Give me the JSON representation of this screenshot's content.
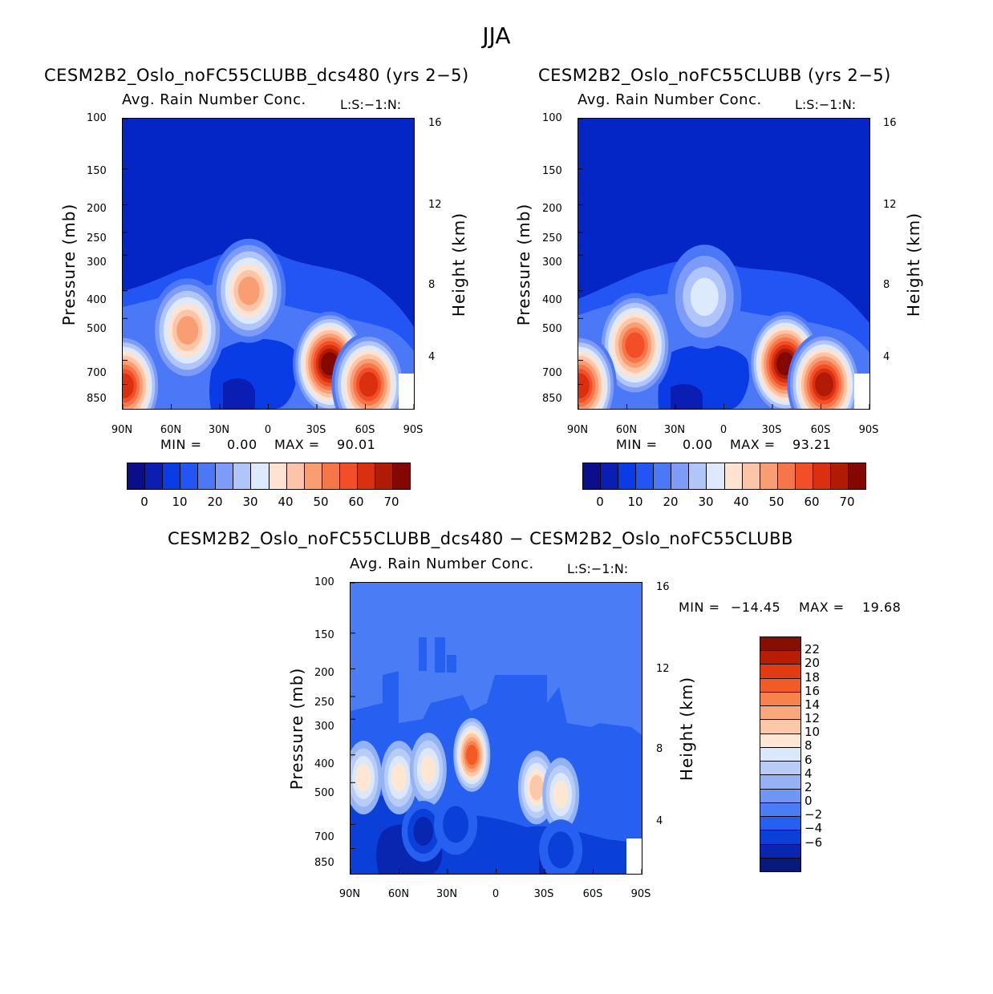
{
  "title": "JJA",
  "palette_main": [
    "#0a0e8a",
    "#0a1eb4",
    "#0a3ce6",
    "#2355f5",
    "#4a78f7",
    "#7c9cf8",
    "#b0c6fa",
    "#dde9fc",
    "#fde3d0",
    "#fcc5a8",
    "#f99e72",
    "#f6764a",
    "#f24e28",
    "#db3010",
    "#b01b05",
    "#830802"
  ],
  "palette_diff": [
    "#851000",
    "#b81d03",
    "#e33a12",
    "#f45b24",
    "#f7824c",
    "#f9a87c",
    "#fcc8a8",
    "#fde6d2",
    "#dbe8fb",
    "#b7cdf8",
    "#94b3f5",
    "#6f96f3",
    "#4a7cf5",
    "#2660f0",
    "#0a3fd8",
    "#0826b0",
    "#051a7a"
  ],
  "chart_data": [
    {
      "type": "heatmap",
      "name": "panel-left",
      "title": "CESM2B2_Oslo_noFC55CLUBB_dcs480 (yrs 2−5)",
      "variable": "Avg. Rain Number Conc.",
      "tag": "L:S:−1:N:",
      "xlabel": "",
      "ylabel": "Pressure (mb)",
      "y2label": "Height (km)",
      "x_ticks": [
        "90N",
        "60N",
        "30N",
        "0",
        "30S",
        "60S",
        "90S"
      ],
      "x_range": [
        90,
        -90
      ],
      "y_ticks": [
        "100",
        "150",
        "200",
        "250",
        "300",
        "400",
        "500",
        "700",
        "850"
      ],
      "y_tick_values": [
        100,
        150,
        200,
        250,
        300,
        400,
        500,
        700,
        850
      ],
      "y_range": [
        100,
        1000
      ],
      "y2_ticks": [
        "16",
        "12",
        "8",
        "4"
      ],
      "y2_tick_values": [
        16,
        12,
        8,
        4
      ],
      "min_label": "MIN =",
      "min_value": "0.00",
      "max_label": "MAX =",
      "max_value": "90.01",
      "colorbar_ticks": [
        "0",
        "10",
        "20",
        "30",
        "40",
        "50",
        "60",
        "70"
      ],
      "colorbar_levels": [
        0,
        5,
        10,
        15,
        20,
        25,
        30,
        35,
        40,
        45,
        50,
        55,
        60,
        65,
        70
      ],
      "features": [
        {
          "lat": 50,
          "p": 550,
          "value": 45
        },
        {
          "lat": 12,
          "p": 400,
          "value": 45
        },
        {
          "lat": -38,
          "p": 720,
          "value": 85
        },
        {
          "lat": -62,
          "p": 850,
          "value": 60
        },
        {
          "lat": 89,
          "p": 860,
          "value": 60
        }
      ]
    },
    {
      "type": "heatmap",
      "name": "panel-right",
      "title": "CESM2B2_Oslo_noFC55CLUBB (yrs 2−5)",
      "variable": "Avg. Rain Number Conc.",
      "tag": "L:S:−1:N:",
      "xlabel": "",
      "ylabel": "Pressure (mb)",
      "y2label": "Height (km)",
      "x_ticks": [
        "90N",
        "60N",
        "30N",
        "0",
        "30S",
        "60S",
        "90S"
      ],
      "x_range": [
        90,
        -90
      ],
      "y_ticks": [
        "100",
        "150",
        "200",
        "250",
        "300",
        "400",
        "500",
        "700",
        "850"
      ],
      "y_tick_values": [
        100,
        150,
        200,
        250,
        300,
        400,
        500,
        700,
        850
      ],
      "y_range": [
        100,
        1000
      ],
      "y2_ticks": [
        "16",
        "12",
        "8",
        "4"
      ],
      "y2_tick_values": [
        16,
        12,
        8,
        4
      ],
      "min_label": "MIN =",
      "min_value": "0.00",
      "max_label": "MAX =",
      "max_value": "93.21",
      "colorbar_ticks": [
        "0",
        "10",
        "20",
        "30",
        "40",
        "50",
        "60",
        "70"
      ],
      "colorbar_levels": [
        0,
        5,
        10,
        15,
        20,
        25,
        30,
        35,
        40,
        45,
        50,
        55,
        60,
        65,
        70
      ],
      "features": [
        {
          "lat": 55,
          "p": 620,
          "value": 55
        },
        {
          "lat": 12,
          "p": 420,
          "value": 32
        },
        {
          "lat": -38,
          "p": 720,
          "value": 88
        },
        {
          "lat": -62,
          "p": 850,
          "value": 65
        },
        {
          "lat": 89,
          "p": 860,
          "value": 60
        }
      ]
    },
    {
      "type": "heatmap",
      "name": "panel-diff",
      "title": "CESM2B2_Oslo_noFC55CLUBB_dcs480 − CESM2B2_Oslo_noFC55CLUBB",
      "variable": "Avg. Rain Number Conc.",
      "tag": "L:S:−1:N:",
      "xlabel": "",
      "ylabel": "Pressure (mb)",
      "y2label": "Height (km)",
      "x_ticks": [
        "90N",
        "60N",
        "30N",
        "0",
        "30S",
        "60S",
        "90S"
      ],
      "x_range": [
        90,
        -90
      ],
      "y_ticks": [
        "100",
        "150",
        "200",
        "250",
        "300",
        "400",
        "500",
        "700",
        "850"
      ],
      "y_tick_values": [
        100,
        150,
        200,
        250,
        300,
        400,
        500,
        700,
        850
      ],
      "y_range": [
        100,
        1000
      ],
      "y2_ticks": [
        "16",
        "12",
        "8",
        "4"
      ],
      "y2_tick_values": [
        16,
        12,
        8,
        4
      ],
      "min_label": "MIN =",
      "min_value": "−14.45",
      "max_label": "MAX =",
      "max_value": "19.68",
      "colorbar_ticks": [
        "22",
        "20",
        "18",
        "16",
        "14",
        "12",
        "10",
        "8",
        "6",
        "4",
        "2",
        "0",
        "−2",
        "−4",
        "−6"
      ],
      "colorbar_levels": [
        22,
        20,
        18,
        16,
        14,
        12,
        10,
        8,
        6,
        4,
        2,
        0,
        -2,
        -4,
        -6
      ],
      "features": [
        {
          "lat": 15,
          "p": 400,
          "value": 19
        },
        {
          "lat": 82,
          "p": 480,
          "value": 10
        },
        {
          "lat": 60,
          "p": 480,
          "value": 9
        },
        {
          "lat": 42,
          "p": 450,
          "value": 9
        },
        {
          "lat": -25,
          "p": 520,
          "value": 12
        },
        {
          "lat": -40,
          "p": 550,
          "value": 11
        },
        {
          "lat": 45,
          "p": 740,
          "value": -7
        },
        {
          "lat": 25,
          "p": 700,
          "value": -6
        },
        {
          "lat": -40,
          "p": 860,
          "value": -6
        }
      ]
    }
  ]
}
